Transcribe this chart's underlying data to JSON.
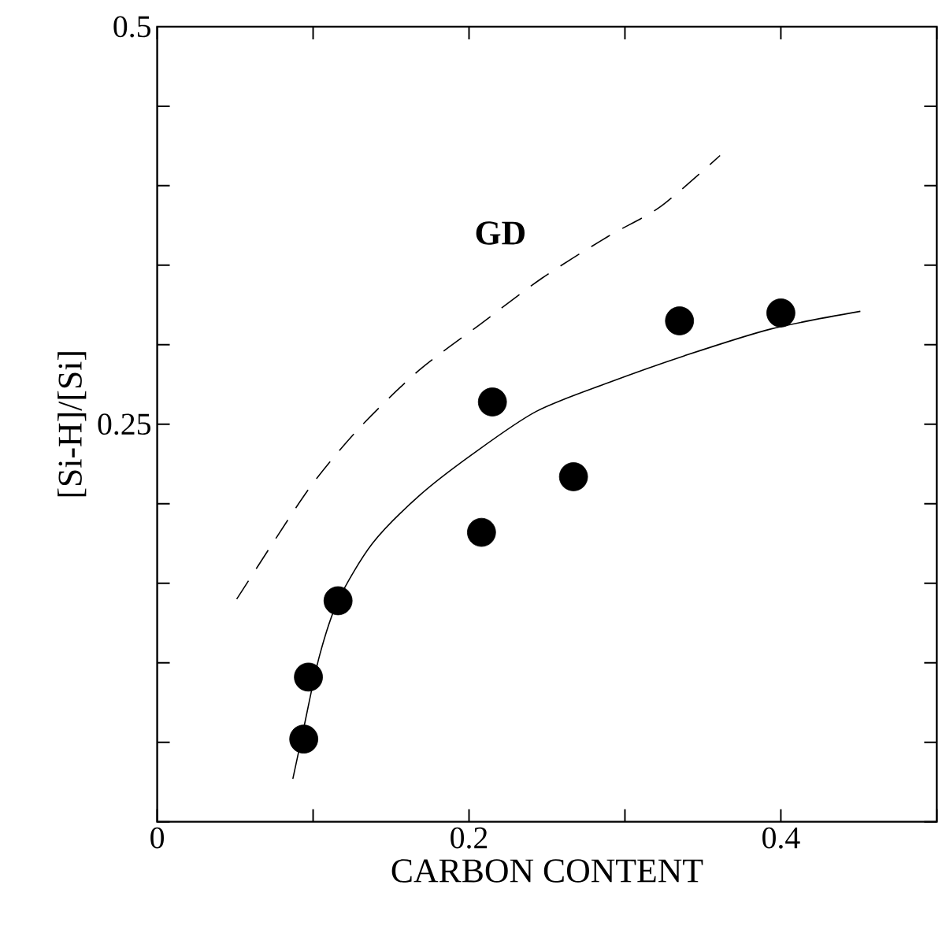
{
  "chart_data": {
    "type": "scatter",
    "xlabel": "CARBON CONTENT",
    "ylabel": "[Si-H]/[Si]",
    "xlim": [
      0,
      0.5
    ],
    "ylim": [
      0,
      0.5
    ],
    "xticks": [
      0,
      {
        "value": 0.1,
        "label": null
      },
      0.2,
      {
        "value": 0.3,
        "label": null
      },
      0.4,
      {
        "value": 0.5,
        "label": null
      }
    ],
    "yticks": [
      {
        "value": 0,
        "label": null
      },
      {
        "value": 0.05,
        "label": null
      },
      {
        "value": 0.1,
        "label": null
      },
      {
        "value": 0.15,
        "label": null
      },
      {
        "value": 0.2,
        "label": null
      },
      0.25,
      {
        "value": 0.3,
        "label": null
      },
      {
        "value": 0.35,
        "label": null
      },
      {
        "value": 0.4,
        "label": null
      },
      {
        "value": 0.45,
        "label": null
      },
      0.5
    ],
    "grid": false,
    "legend": false,
    "series": [
      {
        "color": "#000000",
        "marker": "circle",
        "x": [
          0.094,
          0.097,
          0.116,
          0.208,
          0.215,
          0.267,
          0.335,
          0.4
        ],
        "values": [
          0.052,
          0.091,
          0.139,
          0.182,
          0.264,
          0.217,
          0.315,
          0.32
        ]
      },
      {
        "type": "line",
        "color": "#000000",
        "line_style": "solid",
        "marker": "none",
        "x": [
          0.087,
          0.094,
          0.104,
          0.116,
          0.138,
          0.168,
          0.202,
          0.243,
          0.289,
          0.338,
          0.394,
          0.451
        ],
        "values": [
          0.027,
          0.059,
          0.104,
          0.139,
          0.175,
          0.205,
          0.231,
          0.258,
          0.276,
          0.293,
          0.31,
          0.321
        ]
      },
      {
        "type": "line",
        "name": "GD",
        "color": "#000000",
        "line_style": "dashed",
        "marker": "none",
        "x": [
          0.051,
          0.074,
          0.1,
          0.13,
          0.168,
          0.206,
          0.247,
          0.289,
          0.323,
          0.361
        ],
        "values": [
          0.14,
          0.175,
          0.213,
          0.248,
          0.284,
          0.312,
          0.342,
          0.368,
          0.387,
          0.419
        ]
      }
    ]
  }
}
